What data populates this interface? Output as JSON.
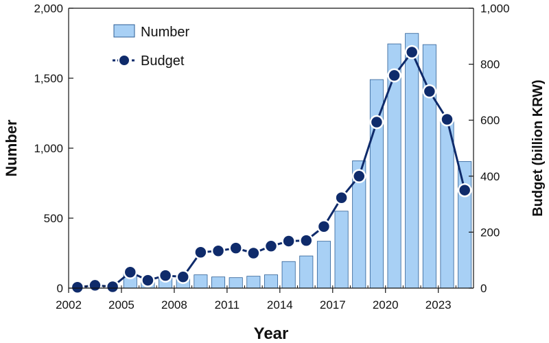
{
  "chart_data": {
    "type": "bar+line",
    "x": [
      2002,
      2003,
      2004,
      2005,
      2006,
      2007,
      2008,
      2009,
      2010,
      2011,
      2012,
      2013,
      2014,
      2015,
      2016,
      2017,
      2018,
      2019,
      2020,
      2021,
      2022,
      2023,
      2024
    ],
    "xticks": [
      "2002",
      "2005",
      "2008",
      "2011",
      "2014",
      "2017",
      "2020",
      "2023"
    ],
    "xlabel": "Year",
    "ylabel_left": "Number",
    "ylabel_right": "Budget (billion KRW)",
    "ylim_left": [
      0,
      2000
    ],
    "ylim_right": [
      0,
      1000
    ],
    "yticks_left": [
      "0",
      "500",
      "1,000",
      "1,500",
      "2,000"
    ],
    "yticks_right": [
      "0",
      "200",
      "400",
      "600",
      "800",
      "1,000"
    ],
    "series": [
      {
        "name": "Number",
        "type": "bar",
        "axis": "left",
        "values": [
          5,
          10,
          15,
          110,
          55,
          75,
          70,
          95,
          80,
          75,
          85,
          95,
          190,
          230,
          335,
          550,
          910,
          1490,
          1745,
          1820,
          1740,
          1200,
          905
        ]
      },
      {
        "name": "Budget",
        "type": "line",
        "axis": "right",
        "values": [
          3,
          10,
          5,
          57,
          28,
          45,
          40,
          128,
          133,
          143,
          125,
          150,
          168,
          170,
          220,
          323,
          400,
          593,
          760,
          843,
          703,
          603,
          350
        ]
      }
    ],
    "legend_position": "top-left",
    "colors": {
      "bar_fill": "#a8d0f5",
      "bar_stroke": "#2c5e95",
      "line": "#0f2b6b",
      "marker": "#0f2b6b",
      "marker_edge": "#ffffff"
    },
    "grid": false
  }
}
